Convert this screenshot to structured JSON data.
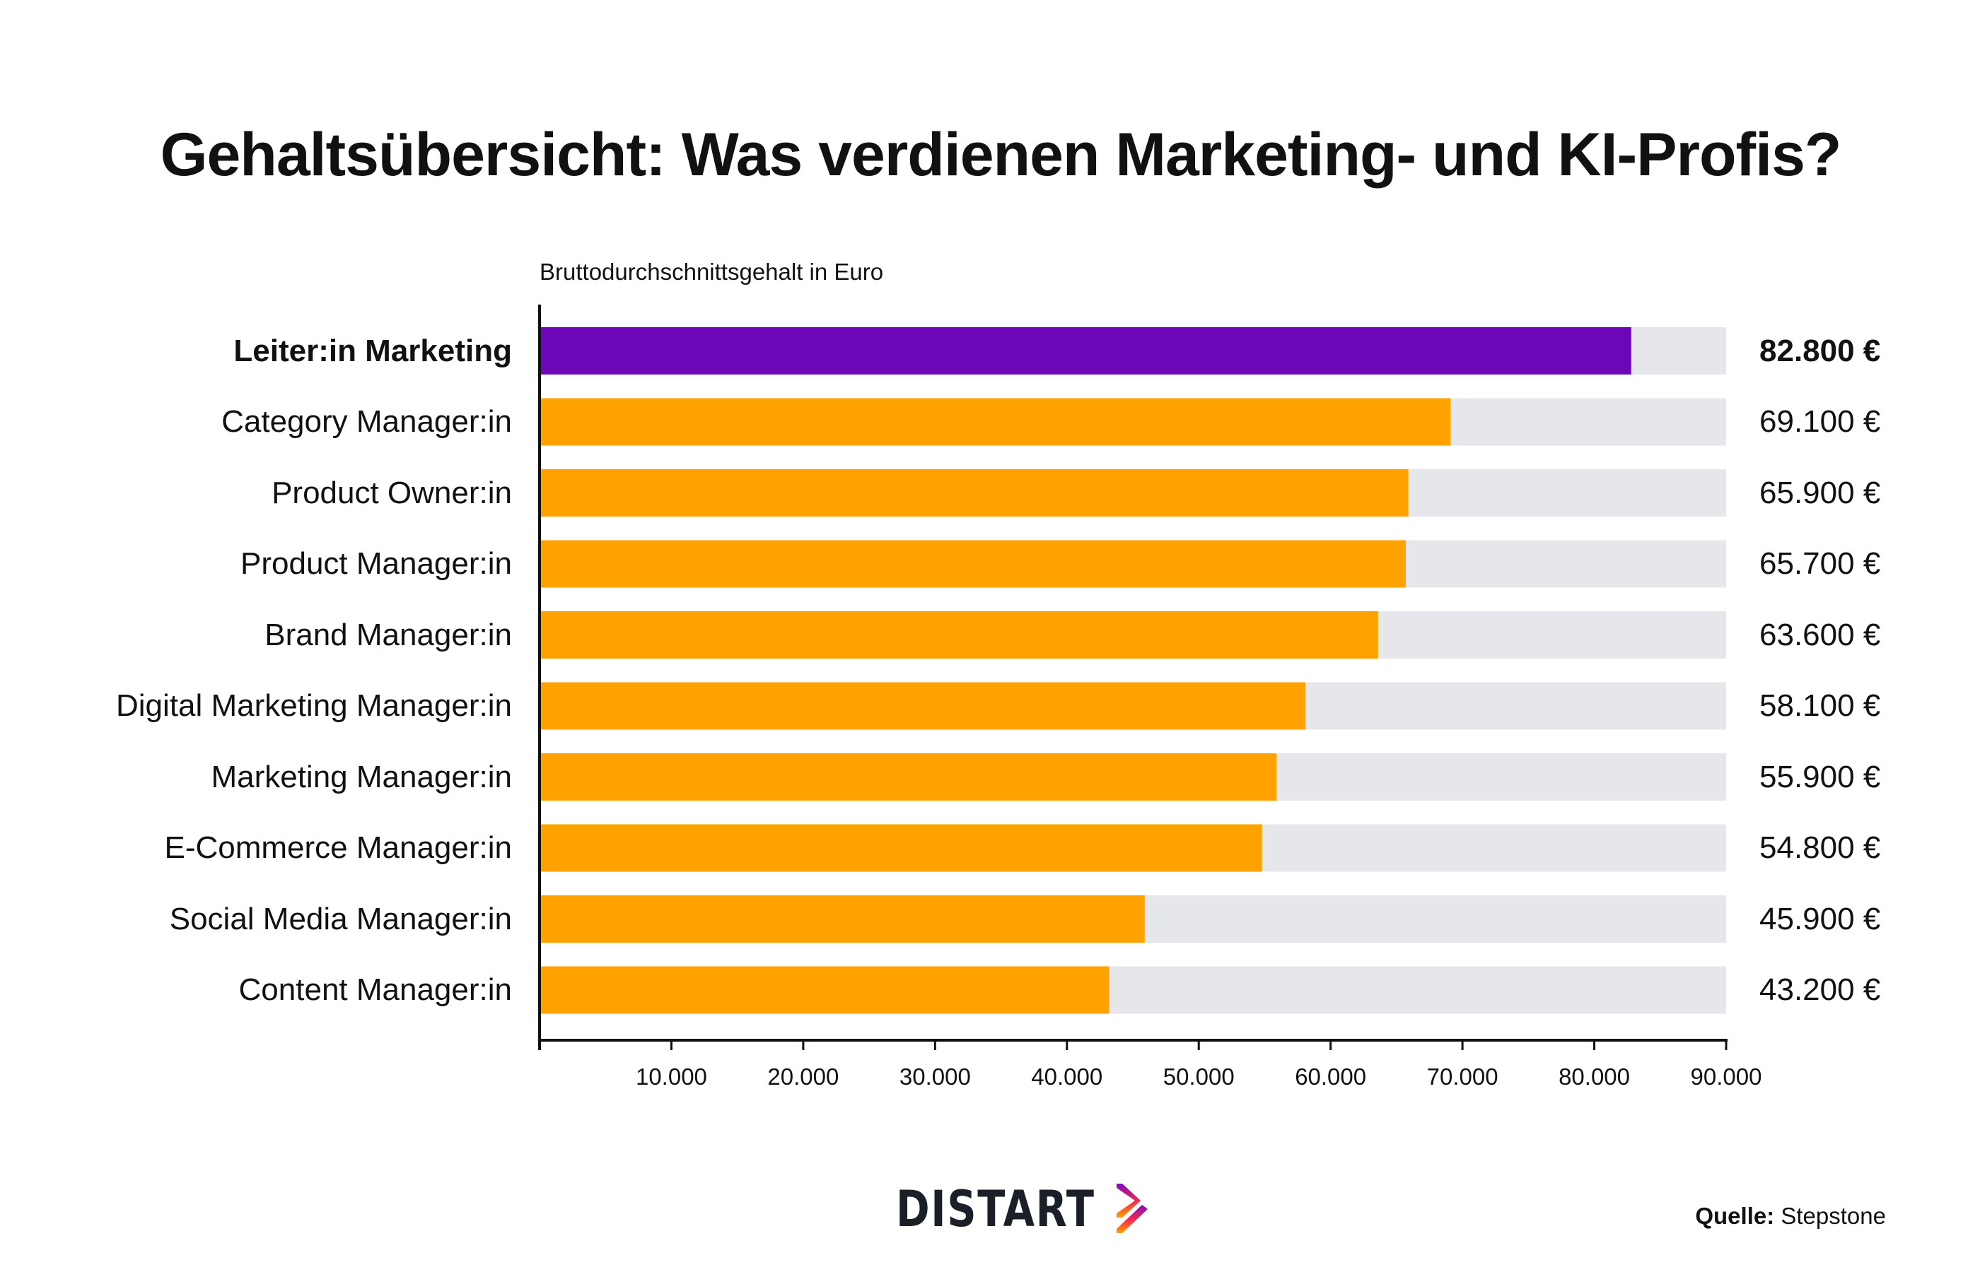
{
  "title": "Gehaltsübersicht: Was verdienen Marketing- und KI-Profis?",
  "logo": "DISTART",
  "source": {
    "label": "Quelle:",
    "value": "Stepstone"
  },
  "colors": {
    "highlight": "#6c06b6",
    "bar": "#ffa200",
    "track": "#e6e7ea",
    "axis": "#111111"
  },
  "chart_data": {
    "type": "bar",
    "orientation": "horizontal",
    "title": "Gehaltsübersicht: Was verdienen Marketing- und KI-Profis?",
    "xlabel": "Bruttodurchschnittsgehalt in Euro",
    "ylabel": "",
    "xlim": [
      0,
      90000
    ],
    "categories": [
      "Leiter:in Marketing",
      "Category Manager:in",
      "Product Owner:in",
      "Product Manager:in",
      "Brand Manager:in",
      "Digital Marketing Manager:in",
      "Marketing Manager:in",
      "E-Commerce Manager:in",
      "Social Media Manager:in",
      "Content Manager:in"
    ],
    "values": [
      82800,
      69100,
      65900,
      65700,
      63600,
      58100,
      55900,
      54800,
      45900,
      43200
    ],
    "value_labels": [
      "82.800 €",
      "69.100 €",
      "65.900 €",
      "65.700 €",
      "63.600 €",
      "58.100 €",
      "55.900 €",
      "54.800 €",
      "45.900 €",
      "43.200 €"
    ],
    "highlighted": [
      0
    ],
    "x_ticks": [
      10000,
      20000,
      30000,
      40000,
      50000,
      60000,
      70000,
      80000,
      90000
    ],
    "x_tick_labels": [
      "10.000",
      "20.000",
      "30.000",
      "40.000",
      "50.000",
      "60.000",
      "70.000",
      "80.000",
      "90.000"
    ],
    "grid": false,
    "legend": "none"
  }
}
